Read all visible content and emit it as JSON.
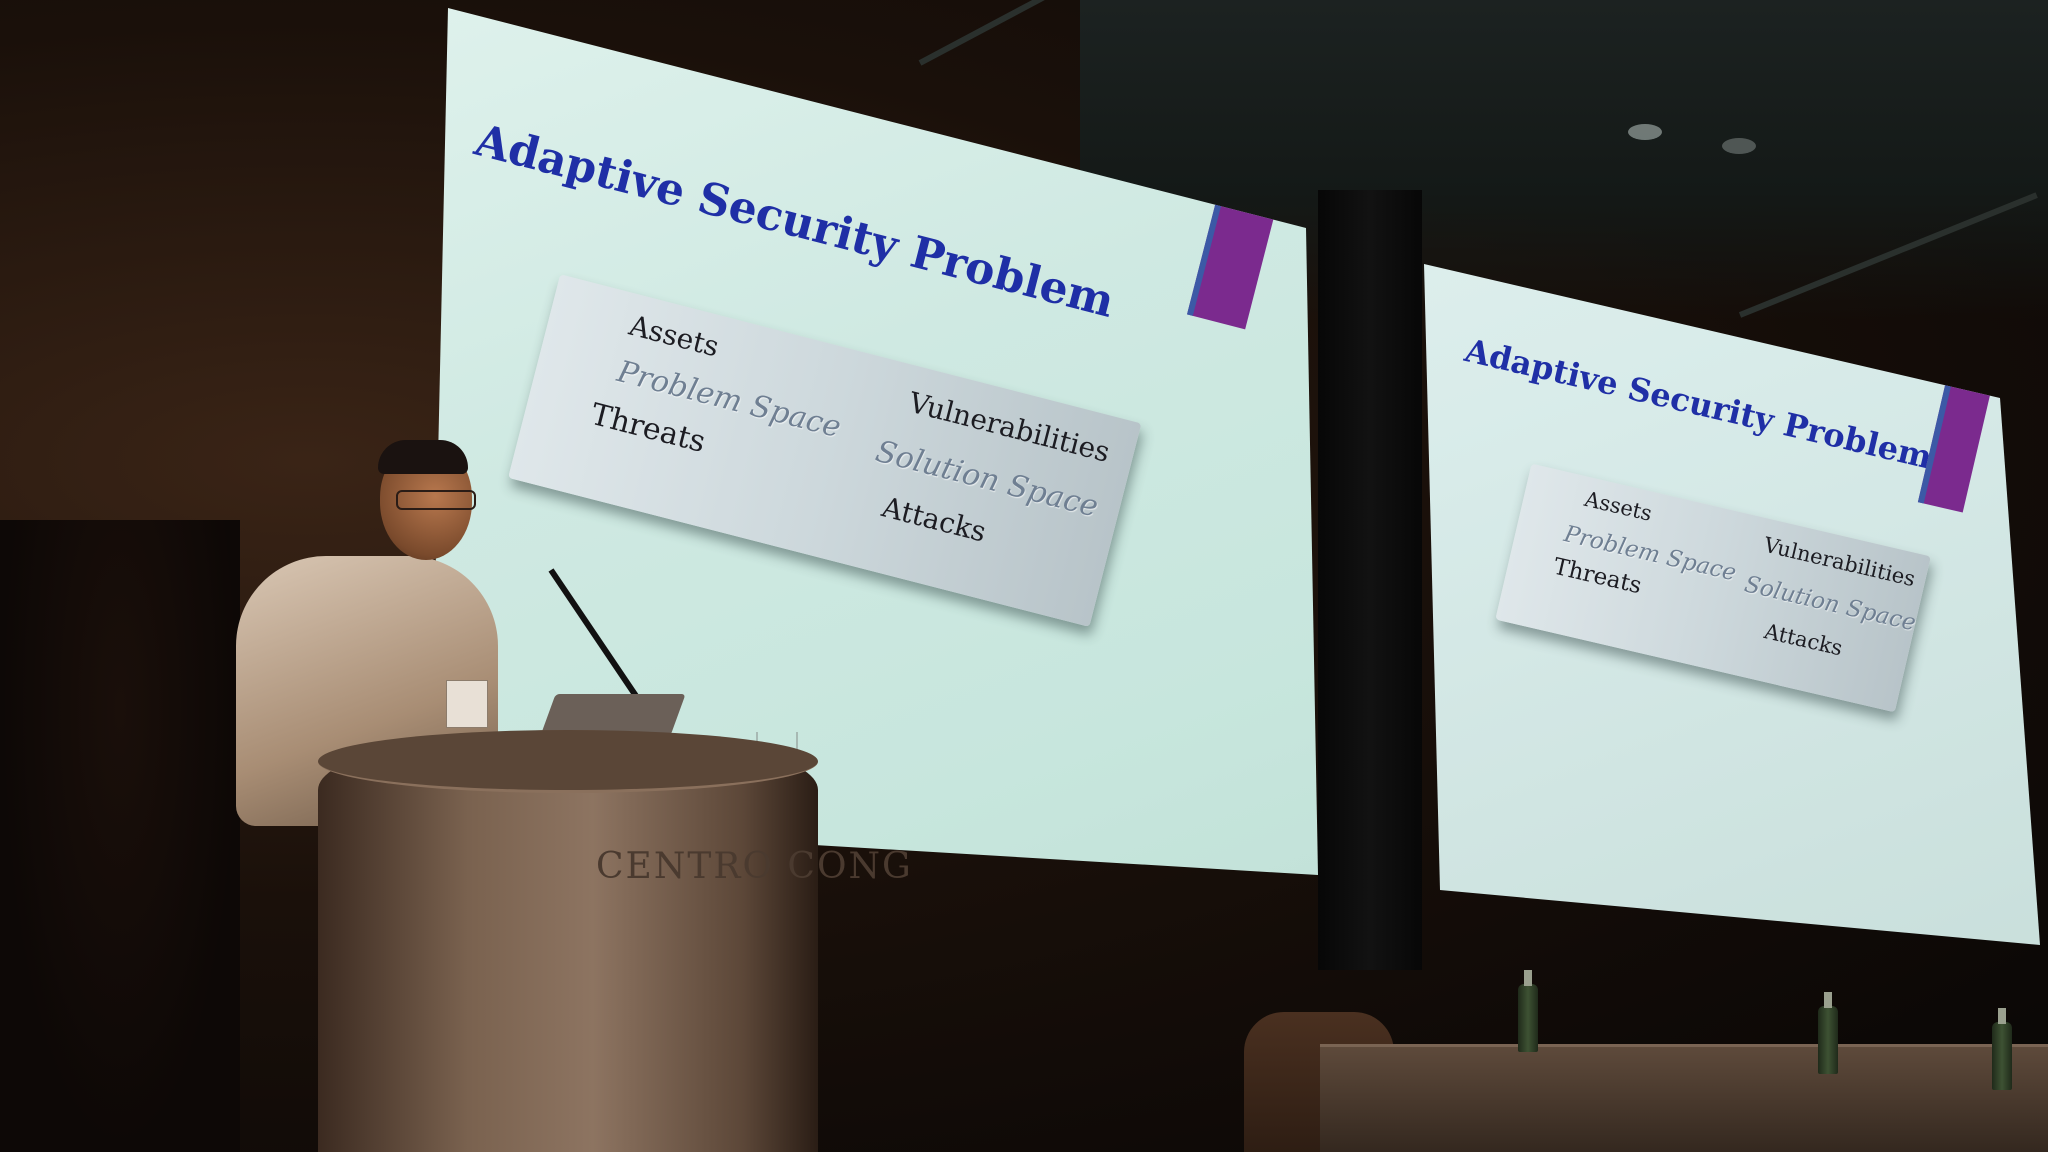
{
  "slides": {
    "left": {
      "title": "Adaptive Security Problem",
      "terms": {
        "assets": "Assets",
        "vulnerabilities": "Vulnerabilities",
        "problem_space": "Problem Space",
        "solution_space": "Solution Space",
        "threats": "Threats",
        "attacks": "Attacks"
      }
    },
    "right": {
      "title": "Adaptive Security Problem",
      "terms": {
        "assets": "Assets",
        "vulnerabilities": "Vulnerabilities",
        "problem_space": "Problem Space",
        "solution_space": "Solution Space",
        "threats": "Threats",
        "attacks": "Attacks"
      }
    }
  },
  "podium": {
    "logo_text": "CENTRO CONG"
  },
  "colors": {
    "title_blue": "#1f2fa6",
    "accent_purple": "#7b2a8e",
    "screen_bg": "#d3ece5"
  }
}
